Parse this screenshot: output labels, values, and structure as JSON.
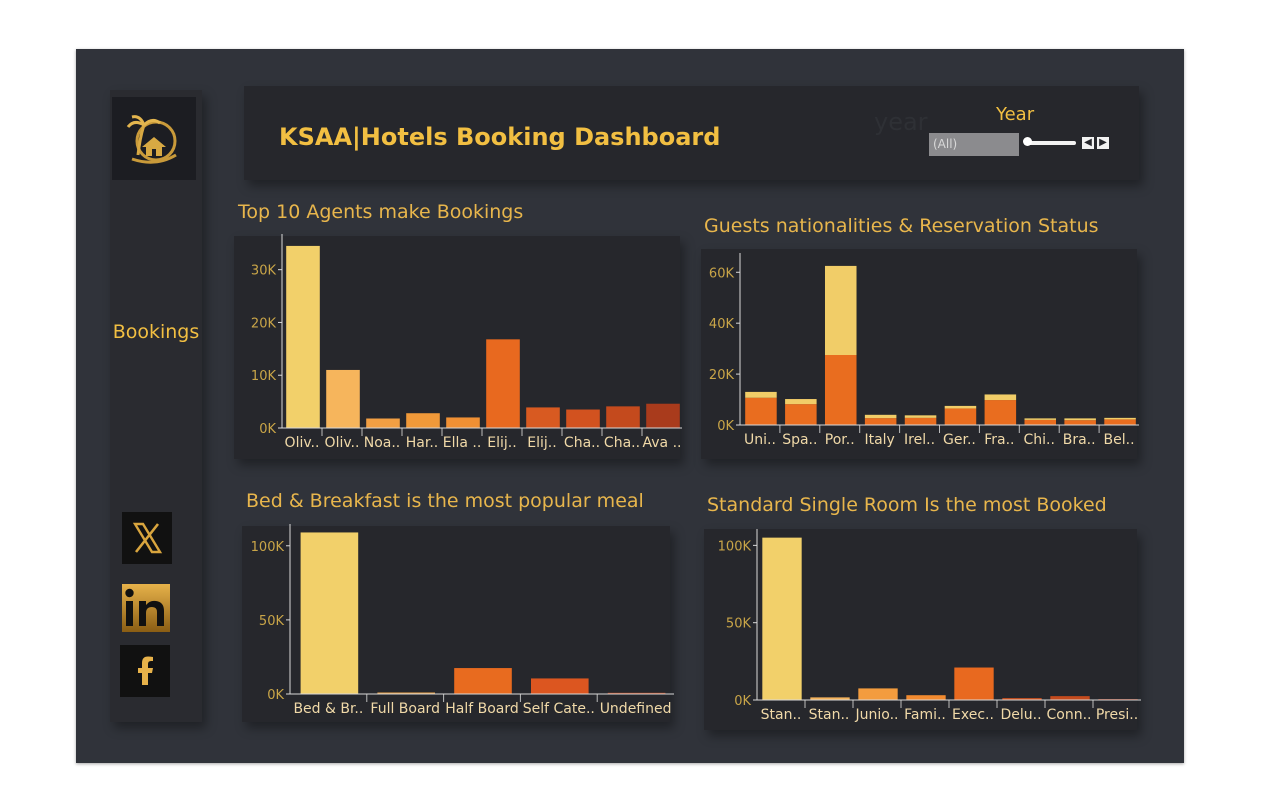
{
  "header": {
    "title": "KSAA|Hotels Booking Dashboard",
    "year_label": "Year",
    "year_value": "(All)",
    "ghost_label": "year"
  },
  "sidebar": {
    "nav_label": "Bookings",
    "social": [
      {
        "icon": "x-logo-icon",
        "glyph": "𝕏"
      },
      {
        "icon": "linkedin-icon",
        "glyph": "in"
      },
      {
        "icon": "facebook-icon",
        "glyph": "f"
      }
    ]
  },
  "colors": {
    "accent": "#f2bf42",
    "palette": [
      "#f1cd68",
      "#f8b45b",
      "#f39c3c",
      "#f28a2e",
      "#ec6a21",
      "#df5a1e",
      "#cf4a1c",
      "#c43f1a",
      "#b8361a",
      "#a82d18"
    ]
  },
  "chart_data": [
    {
      "type": "bar",
      "title": "Top 10 Agents make Bookings",
      "categories": [
        "Oliv..",
        "Oliv..",
        "Noa..",
        "Har..",
        "Ella ..",
        "Elij..",
        "Elij..",
        "Cha..",
        "Cha..",
        "Ava .."
      ],
      "values": [
        34500,
        11000,
        1800,
        2800,
        2000,
        16800,
        3900,
        3500,
        4100,
        4600
      ],
      "ylim": [
        0,
        36000
      ],
      "yticks": [
        0,
        10000,
        20000,
        30000
      ],
      "ytick_labels": [
        "0K",
        "10K",
        "20K",
        "30K"
      ],
      "colors": [
        "#f2d06a",
        "#f6b55c",
        "#f29f43",
        "#f09939",
        "#f09034",
        "#e8691f",
        "#d85a21",
        "#d2521f",
        "#c44a1d",
        "#a93b1c"
      ]
    },
    {
      "type": "bar",
      "stacked": true,
      "title": "Guests nationalities & Reservation Status",
      "categories": [
        "Uni..",
        "Spa..",
        "Por..",
        "Italy",
        "Irel..",
        "Ger..",
        "Fra..",
        "Chi..",
        "Bra..",
        "Bel.."
      ],
      "series": [
        {
          "values": [
            10700,
            8200,
            27500,
            2700,
            2800,
            6500,
            9800,
            2000,
            1900,
            2200
          ]
        },
        {
          "values": [
            2300,
            2000,
            35000,
            1300,
            1000,
            1000,
            2200,
            600,
            700,
            600
          ]
        }
      ],
      "ylim": [
        0,
        66000
      ],
      "yticks": [
        0,
        20000,
        40000,
        60000
      ],
      "ytick_labels": [
        "0K",
        "20K",
        "40K",
        "60K"
      ],
      "series_colors": [
        "#e96d1f",
        "#f1cd68"
      ]
    },
    {
      "type": "bar",
      "title": "Bed & Breakfast is the most popular meal",
      "categories": [
        "Bed & Br..",
        "Full Board",
        "Half Board",
        "Self Cate..",
        "Undefined"
      ],
      "values": [
        109000,
        1000,
        17500,
        10500,
        800
      ],
      "ylim": [
        0,
        112000
      ],
      "yticks": [
        0,
        50000,
        100000
      ],
      "ytick_labels": [
        "0K",
        "50K",
        "100K"
      ],
      "colors": [
        "#f2d06a",
        "#f0a64a",
        "#e86b1f",
        "#dc5620",
        "#c84a1f"
      ]
    },
    {
      "type": "bar",
      "title": "Standard Single Room Is the most Booked",
      "categories": [
        "Stan..",
        "Stan..",
        "Junio..",
        "Fami..",
        "Exec..",
        "Delu..",
        "Conn..",
        "Presi.."
      ],
      "values": [
        105000,
        1700,
        7500,
        3100,
        21000,
        1200,
        2500,
        600
      ],
      "ylim": [
        0,
        108000
      ],
      "yticks": [
        0,
        50000,
        100000
      ],
      "ytick_labels": [
        "0K",
        "50K",
        "100K"
      ],
      "colors": [
        "#f2d06a",
        "#f4b35c",
        "#f39c3e",
        "#f28a2f",
        "#e8691f",
        "#d2521f",
        "#c44a1d",
        "#a93b1c"
      ]
    }
  ]
}
